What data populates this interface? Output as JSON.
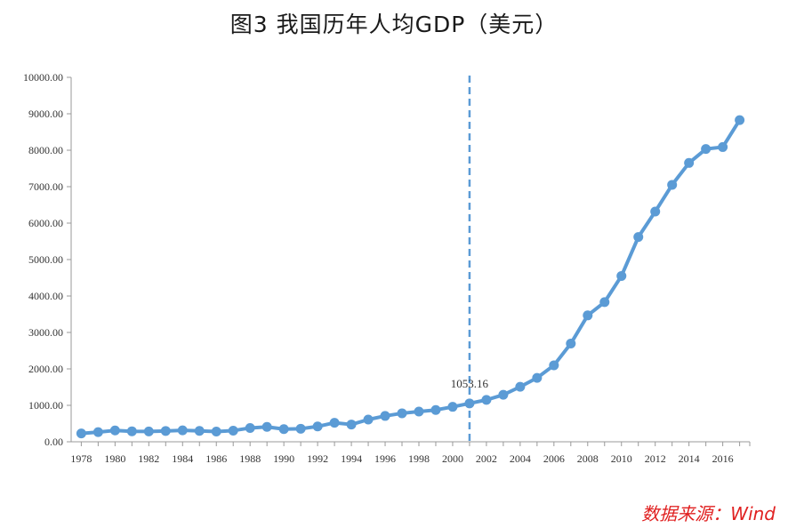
{
  "chart_data": {
    "type": "line",
    "title": "图3  我国历年人均GDP（美元）",
    "x": [
      1978,
      1979,
      1980,
      1981,
      1982,
      1983,
      1984,
      1985,
      1986,
      1987,
      1988,
      1989,
      1990,
      1991,
      1992,
      1993,
      1994,
      1995,
      1996,
      1997,
      1998,
      1999,
      2000,
      2001,
      2002,
      2003,
      2004,
      2005,
      2006,
      2007,
      2008,
      2009,
      2010,
      2011,
      2012,
      2013,
      2014,
      2015,
      2016,
      2017
    ],
    "series": [
      {
        "values": [
          229,
          265,
          312,
          288,
          283,
          297,
          313,
          298,
          281,
          306,
          379,
          409,
          348,
          358,
          420,
          522,
          474,
          610,
          709,
          782,
          829,
          873,
          959,
          1053.16,
          1149,
          1289,
          1509,
          1753,
          2099,
          2694,
          3468,
          3832,
          4550,
          5618,
          6316,
          7050,
          7651,
          8033,
          8087,
          8827
        ]
      }
    ],
    "xlim": [
      1977.4,
      2017.6
    ],
    "ylim": [
      0,
      10000
    ],
    "y_ticks": [
      "0.00",
      "1000.00",
      "2000.00",
      "3000.00",
      "4000.00",
      "5000.00",
      "6000.00",
      "7000.00",
      "8000.00",
      "9000.00",
      "10000.00"
    ],
    "x_ticks": [
      "1978",
      "1980",
      "1982",
      "1984",
      "1986",
      "1988",
      "1990",
      "1992",
      "1994",
      "1996",
      "1998",
      "2000",
      "2002",
      "2004",
      "2006",
      "2008",
      "2010",
      "2012",
      "2014",
      "2016"
    ],
    "annotation": {
      "x": 2001,
      "label": "1053.16",
      "line_style": "dashed"
    },
    "grid": false,
    "line_color": "#5b9bd5",
    "marker_color": "#5b9bd5"
  },
  "source": "数据来源：Wind"
}
